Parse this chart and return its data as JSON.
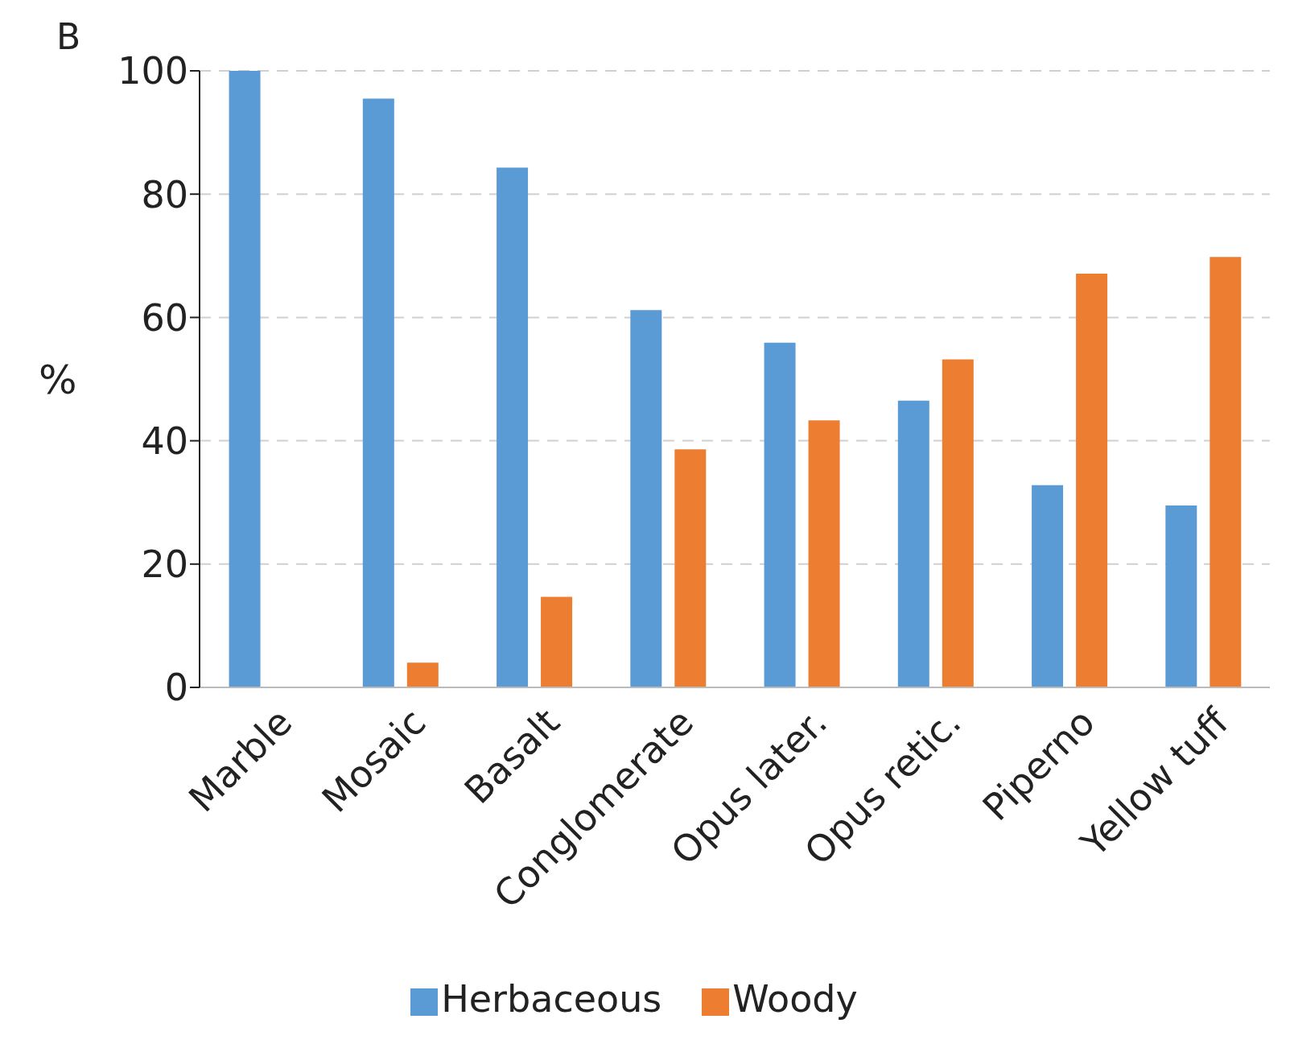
{
  "chart_data": {
    "type": "bar",
    "ylabel": "%",
    "annotations": [
      "B"
    ],
    "categories": [
      "Marble",
      "Mosaic",
      "Basalt",
      "Conglomerate",
      "Opus later.",
      "Opus retic.",
      "Piperno",
      "Yellow tuff"
    ],
    "series": [
      {
        "name": "Herbaceous",
        "color": "#5b9bd5",
        "values": [
          100,
          95.5,
          84.3,
          61.2,
          55.9,
          46.5,
          32.8,
          29.5
        ]
      },
      {
        "name": "Woody",
        "color": "#ed7d31",
        "values": [
          0,
          4,
          14.7,
          38.6,
          43.3,
          53.2,
          67.1,
          69.8
        ]
      }
    ],
    "ylim": [
      0,
      100
    ],
    "yticks": [
      0,
      20,
      40,
      60,
      80,
      100
    ],
    "grid": "y",
    "legend": "bottom"
  }
}
